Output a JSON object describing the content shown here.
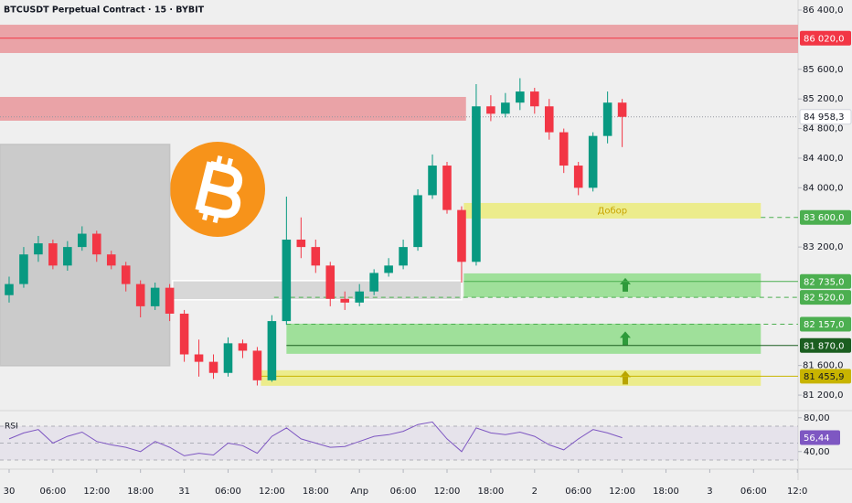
{
  "chart_data": {
    "type": "candlestick",
    "title": "BTCUSDT Perpetual Contract · 15 · BYBIT",
    "xlim": [
      -1.25,
      108.1
    ],
    "xticks": [
      {
        "value": 0,
        "label": "30"
      },
      {
        "value": 6,
        "label": "06:00"
      },
      {
        "value": 12,
        "label": "12:00"
      },
      {
        "value": 18,
        "label": "18:00"
      },
      {
        "value": 24,
        "label": "31"
      },
      {
        "value": 30,
        "label": "06:00"
      },
      {
        "value": 36,
        "label": "12:00"
      },
      {
        "value": 42,
        "label": "18:00"
      },
      {
        "value": 48,
        "label": "Апр"
      },
      {
        "value": 54,
        "label": "06:00"
      },
      {
        "value": 60,
        "label": "12:00"
      },
      {
        "value": 66,
        "label": "18:00"
      },
      {
        "value": 72,
        "label": "2"
      },
      {
        "value": 78,
        "label": "06:00"
      },
      {
        "value": 84,
        "label": "12:00"
      },
      {
        "value": 90,
        "label": "18:00"
      },
      {
        "value": 96,
        "label": "3"
      },
      {
        "value": 102,
        "label": "06:00"
      },
      {
        "value": 108,
        "label": "12:0"
      }
    ],
    "ylim": [
      81040,
      86536
    ],
    "yticks": [
      {
        "value": 86400,
        "label": "86 400,0"
      },
      {
        "value": 85600,
        "label": "85 600,0"
      },
      {
        "value": 85200,
        "label": "85 200,0"
      },
      {
        "value": 84800,
        "label": "84 800,0"
      },
      {
        "value": 84400,
        "label": "84 400,0"
      },
      {
        "value": 84000,
        "label": "84 000,0"
      },
      {
        "value": 83200,
        "label": "83 200,0"
      },
      {
        "value": 81600,
        "label": "81 600,0"
      },
      {
        "value": 81200,
        "label": "81 200,0"
      }
    ],
    "up_color": "#089981",
    "down_color": "#f23645",
    "x": [
      0,
      2,
      4,
      6,
      8,
      10,
      12,
      14,
      16,
      18,
      20,
      22,
      24,
      26,
      28,
      30,
      32,
      34,
      36,
      38,
      40,
      42,
      44,
      46,
      48,
      50,
      52,
      54,
      56,
      58,
      60,
      62,
      64,
      66,
      68,
      70,
      72,
      74,
      76,
      78,
      80,
      82,
      84
    ],
    "open": [
      82550,
      82700,
      83100,
      83250,
      82950,
      83200,
      83380,
      83100,
      82950,
      82700,
      82400,
      82650,
      82300,
      81750,
      81650,
      81500,
      81900,
      81800,
      81400,
      82200,
      83300,
      83200,
      82950,
      82500,
      82450,
      82600,
      82850,
      82950,
      83200,
      83900,
      84300,
      83700,
      83000,
      85100,
      85000,
      85150,
      85300,
      85100,
      84750,
      84300,
      84000,
      84700,
      85150
    ],
    "high": [
      82800,
      83200,
      83350,
      83300,
      83280,
      83480,
      83420,
      83150,
      83000,
      82750,
      82720,
      82700,
      82350,
      81950,
      81750,
      81980,
      81950,
      81850,
      82280,
      83880,
      83600,
      83300,
      83000,
      82600,
      82700,
      82900,
      83050,
      83300,
      83980,
      84450,
      84350,
      83750,
      85400,
      85250,
      85280,
      85480,
      85350,
      85200,
      84800,
      84350,
      84750,
      85300,
      85200
    ],
    "low": [
      82450,
      82650,
      83000,
      82900,
      82880,
      83150,
      83000,
      82900,
      82600,
      82250,
      82350,
      82200,
      81650,
      81450,
      81420,
      81450,
      81700,
      81330,
      81380,
      82150,
      83050,
      82850,
      82400,
      82350,
      82400,
      82550,
      82800,
      82900,
      83150,
      83850,
      83650,
      82720,
      82950,
      84900,
      84950,
      85050,
      85000,
      84650,
      84200,
      83900,
      83950,
      84600,
      84550
    ],
    "close": [
      82700,
      83100,
      83250,
      82950,
      83200,
      83380,
      83100,
      82950,
      82700,
      82400,
      82650,
      82300,
      81750,
      81650,
      81500,
      81900,
      81800,
      81400,
      82200,
      83300,
      83200,
      82950,
      82500,
      82450,
      82600,
      82850,
      82950,
      83200,
      83900,
      84300,
      83700,
      83000,
      85100,
      85000,
      85150,
      85300,
      85100,
      84750,
      84300,
      84000,
      84700,
      85150,
      84958.3
    ],
    "current_price": {
      "value": 84958.3,
      "label": "84 958,3"
    },
    "zones": [
      {
        "from": 85820,
        "to": 86202,
        "x_from": -1.25,
        "x_to": 108.1,
        "color": "#eaa3a7"
      },
      {
        "from": 84906,
        "to": 85227,
        "x_from": -1.25,
        "x_to": 62.6,
        "color": "#eaa3a7"
      },
      {
        "from": 83585,
        "to": 83795,
        "x_from": 62.3,
        "x_to": 103,
        "color": "#ecec8c",
        "label": "Добор",
        "label_color": "#c9a400"
      },
      {
        "from": 82523,
        "to": 82844,
        "x_from": 62.3,
        "x_to": 103,
        "color": "#9fe09a",
        "arrow": "#2e9a3a"
      },
      {
        "from": 81758,
        "to": 82165,
        "x_from": 38,
        "x_to": 103,
        "color": "#9fe09a",
        "arrow": "#2e9a3a"
      },
      {
        "from": 81326,
        "to": 81536,
        "x_from": 34.5,
        "x_to": 103,
        "color": "#ecec8c",
        "arrow": "#b8a400"
      }
    ],
    "boxes": [
      {
        "from": 81598,
        "to": 84585,
        "x_from": -1.25,
        "x_to": 22,
        "color": "#c4c4c4",
        "border": "#c4c4c4"
      },
      {
        "from": 82487,
        "to": 82746,
        "x_from": 22.4,
        "x_to": 62,
        "color": "#d2d2d2",
        "border": "#ffffff"
      }
    ],
    "levels": [
      {
        "value": 86020,
        "label": "86 020,0",
        "color": "#f23645",
        "text_color": "#ffffff",
        "style": "solid",
        "x_from": -1.25
      },
      {
        "value": 83600,
        "label": "83 600,0",
        "color": "#4caf50",
        "text_color": "#ffffff",
        "style": "dashed",
        "x_from": 103
      },
      {
        "value": 82735,
        "label": "82 735,0",
        "color": "#4caf50",
        "text_color": "#ffffff",
        "style": "solid",
        "x_from": 62.3
      },
      {
        "value": 82520,
        "label": "82 520,0",
        "color": "#4caf50",
        "text_color": "#ffffff",
        "style": "dashed",
        "x_from": 36.3
      },
      {
        "value": 82157,
        "label": "82 157,0",
        "color": "#4caf50",
        "text_color": "#ffffff",
        "style": "dashed",
        "x_from": 38
      },
      {
        "value": 81870,
        "label": "81 870,0",
        "color": "#1b5e20",
        "text_color": "#ffffff",
        "style": "solid",
        "x_from": 38
      },
      {
        "value": 81455.9,
        "label": "81 455,9",
        "color": "#c8b400",
        "text_color": "#131722",
        "style": "solid",
        "x_from": 34.5
      }
    ],
    "rsi": {
      "name": "RSI",
      "color": "#7e57c2",
      "ylim": [
        20.3,
        87.3
      ],
      "yticks": [
        {
          "value": 80,
          "label": "80,00"
        },
        {
          "value": 40,
          "label": "40,00"
        }
      ],
      "band": [
        30,
        70
      ],
      "middle": 50,
      "values": [
        55,
        62,
        66,
        50,
        58,
        63,
        52,
        48,
        45,
        40,
        52,
        45,
        35,
        38,
        36,
        50,
        47,
        38,
        58,
        68,
        55,
        50,
        45,
        46,
        52,
        58,
        60,
        64,
        72,
        75,
        55,
        40,
        68,
        62,
        60,
        63,
        58,
        48,
        42,
        55,
        66,
        62,
        56.44
      ],
      "value_labels": [
        null,
        null,
        null,
        null,
        null,
        null,
        null,
        null,
        null,
        null,
        null,
        null,
        null,
        null,
        null,
        null,
        null,
        null,
        null,
        null,
        null,
        null,
        null,
        null,
        null,
        null,
        null,
        null,
        null,
        null,
        null,
        null,
        null,
        null,
        null,
        null,
        null,
        null,
        null,
        null,
        null,
        null,
        "56,44"
      ]
    }
  }
}
